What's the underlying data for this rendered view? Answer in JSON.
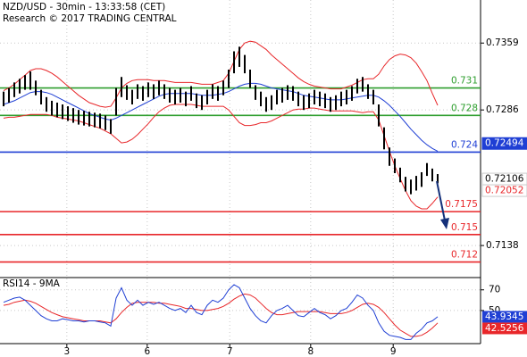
{
  "chart_data": {
    "type": "ohlc",
    "title": "NZD/USD - 30min - 13:33:58 (CET)",
    "subtitle": "Research © 2017 TRADING CENTRAL",
    "xlim": [
      -0.67,
      89
    ],
    "xticks": [
      {
        "value": 11.8,
        "label": "3"
      },
      {
        "value": 26.8,
        "label": "6"
      },
      {
        "value": 42.2,
        "label": "7"
      },
      {
        "value": 57.3,
        "label": "8"
      },
      {
        "value": 72.7,
        "label": "9"
      }
    ],
    "ylim": [
      0.7104,
      0.7406
    ],
    "yticks": [
      0.7359,
      0.7286,
      0.7138
    ],
    "grid": true,
    "bar_color": "#000000",
    "high": [
      0.7306,
      0.731,
      0.7316,
      0.732,
      0.7324,
      0.7328,
      0.7318,
      0.7308,
      0.73,
      0.7296,
      0.7294,
      0.7292,
      0.729,
      0.7288,
      0.7286,
      0.7285,
      0.7284,
      0.7283,
      0.7282,
      0.728,
      0.7276,
      0.731,
      0.7322,
      0.7313,
      0.7308,
      0.7314,
      0.7312,
      0.7316,
      0.7314,
      0.7318,
      0.7314,
      0.731,
      0.7308,
      0.731,
      0.7306,
      0.7312,
      0.7304,
      0.7302,
      0.7308,
      0.7314,
      0.7312,
      0.7318,
      0.733,
      0.735,
      0.7355,
      0.7346,
      0.733,
      0.7313,
      0.7306,
      0.73,
      0.7302,
      0.7308,
      0.731,
      0.7313,
      0.7312,
      0.7306,
      0.7302,
      0.7304,
      0.7308,
      0.7306,
      0.7304,
      0.73,
      0.7302,
      0.7306,
      0.7308,
      0.7312,
      0.732,
      0.7322,
      0.7314,
      0.7308,
      0.7292,
      0.7267,
      0.7245,
      0.7233,
      0.7223,
      0.7213,
      0.721,
      0.7214,
      0.7218,
      0.7228,
      0.7222,
      0.7216
    ],
    "low": [
      0.729,
      0.7294,
      0.73,
      0.7304,
      0.7308,
      0.7308,
      0.7302,
      0.7292,
      0.7284,
      0.728,
      0.7278,
      0.7276,
      0.7274,
      0.7272,
      0.727,
      0.7269,
      0.7268,
      0.7267,
      0.7266,
      0.7264,
      0.726,
      0.728,
      0.73,
      0.7297,
      0.7292,
      0.7298,
      0.7296,
      0.73,
      0.7298,
      0.7302,
      0.7298,
      0.7294,
      0.7292,
      0.7294,
      0.729,
      0.7296,
      0.7288,
      0.7286,
      0.7292,
      0.7298,
      0.7296,
      0.7302,
      0.731,
      0.7326,
      0.7333,
      0.7326,
      0.731,
      0.7297,
      0.729,
      0.7284,
      0.7286,
      0.7292,
      0.7294,
      0.7297,
      0.7296,
      0.729,
      0.7286,
      0.7288,
      0.7292,
      0.729,
      0.7288,
      0.7284,
      0.7286,
      0.729,
      0.7292,
      0.7296,
      0.7304,
      0.7306,
      0.7298,
      0.7292,
      0.7268,
      0.7243,
      0.7225,
      0.7217,
      0.7207,
      0.7197,
      0.7194,
      0.7198,
      0.7202,
      0.7214,
      0.7208,
      0.7206
    ],
    "bands": {
      "color": "#e8272a",
      "upper": [
        0.7307,
        0.731,
        0.7314,
        0.7319,
        0.7324,
        0.7329,
        0.7331,
        0.7331,
        0.7329,
        0.7326,
        0.7322,
        0.7317,
        0.7312,
        0.7307,
        0.7302,
        0.7298,
        0.7294,
        0.7292,
        0.729,
        0.7289,
        0.729,
        0.7299,
        0.731,
        0.7315,
        0.7318,
        0.7319,
        0.7319,
        0.7319,
        0.7318,
        0.7318,
        0.7318,
        0.7317,
        0.7316,
        0.7316,
        0.7316,
        0.7316,
        0.7315,
        0.7314,
        0.7314,
        0.7314,
        0.7316,
        0.7318,
        0.7326,
        0.7339,
        0.7352,
        0.7359,
        0.7361,
        0.736,
        0.7356,
        0.7352,
        0.7346,
        0.7341,
        0.7336,
        0.7331,
        0.7326,
        0.7321,
        0.7317,
        0.7314,
        0.7312,
        0.7311,
        0.731,
        0.7309,
        0.7309,
        0.7309,
        0.7311,
        0.7313,
        0.7316,
        0.7319,
        0.732,
        0.732,
        0.7325,
        0.7334,
        0.7341,
        0.7345,
        0.7347,
        0.7346,
        0.7343,
        0.7337,
        0.7328,
        0.7318,
        0.7304,
        0.7291
      ],
      "lower": [
        0.7277,
        0.7278,
        0.7278,
        0.7279,
        0.728,
        0.7281,
        0.7281,
        0.7281,
        0.7281,
        0.728,
        0.7278,
        0.7277,
        0.7276,
        0.7275,
        0.7274,
        0.7272,
        0.727,
        0.7268,
        0.7266,
        0.7263,
        0.726,
        0.7255,
        0.725,
        0.7251,
        0.7254,
        0.7259,
        0.7265,
        0.7271,
        0.7278,
        0.7284,
        0.7288,
        0.7291,
        0.7292,
        0.7292,
        0.7292,
        0.7292,
        0.7291,
        0.729,
        0.729,
        0.729,
        0.729,
        0.729,
        0.7286,
        0.7279,
        0.7272,
        0.7269,
        0.7269,
        0.727,
        0.7272,
        0.7272,
        0.7274,
        0.7277,
        0.728,
        0.7283,
        0.7286,
        0.7287,
        0.7287,
        0.7288,
        0.7288,
        0.7287,
        0.7286,
        0.7285,
        0.7285,
        0.7285,
        0.7285,
        0.7285,
        0.7284,
        0.7283,
        0.7284,
        0.7284,
        0.7275,
        0.7258,
        0.7241,
        0.7225,
        0.7211,
        0.7198,
        0.7187,
        0.7181,
        0.7178,
        0.7178,
        0.7184,
        0.7191
      ]
    },
    "ma": {
      "color": "#1f3fd4",
      "values": [
        0.7292,
        0.7294,
        0.7296,
        0.7299,
        0.7302,
        0.7305,
        0.7306,
        0.7306,
        0.7305,
        0.7303,
        0.73,
        0.7297,
        0.7294,
        0.7291,
        0.7288,
        0.7285,
        0.7282,
        0.728,
        0.7278,
        0.7276,
        0.7275,
        0.7277,
        0.728,
        0.7283,
        0.7286,
        0.7289,
        0.7292,
        0.7295,
        0.7298,
        0.7301,
        0.7303,
        0.7304,
        0.7304,
        0.7304,
        0.7304,
        0.7304,
        0.7303,
        0.7302,
        0.7302,
        0.7302,
        0.7303,
        0.7304,
        0.7306,
        0.7309,
        0.7312,
        0.7314,
        0.7315,
        0.7315,
        0.7314,
        0.7312,
        0.731,
        0.7309,
        0.7308,
        0.7307,
        0.7306,
        0.7304,
        0.7302,
        0.7301,
        0.73,
        0.7299,
        0.7298,
        0.7297,
        0.7297,
        0.7297,
        0.7298,
        0.7299,
        0.73,
        0.7301,
        0.7302,
        0.7302,
        0.73,
        0.7296,
        0.7291,
        0.7285,
        0.7279,
        0.7272,
        0.7265,
        0.7259,
        0.7253,
        0.7248,
        0.7244,
        0.7241
      ]
    },
    "levels": [
      {
        "value": 0.731,
        "color": "#2e9e2e"
      },
      {
        "value": 0.728,
        "color": "#2e9e2e"
      },
      {
        "value": 0.724,
        "color": "#1f3fd4"
      },
      {
        "value": 0.7175,
        "color": "#e8272a"
      },
      {
        "value": 0.715,
        "color": "#e8272a"
      },
      {
        "value": 0.712,
        "color": "#e8272a"
      }
    ],
    "price_tags": [
      {
        "value": 0.72494,
        "color": "#1f3fd4",
        "filled": true
      },
      {
        "value": 0.72106,
        "color": "#000000",
        "filled": false
      },
      {
        "value": 0.72052,
        "color": "#e8272a",
        "filled": false
      }
    ],
    "rsi": {
      "title": "RSI14 - 9MA",
      "ylim": [
        18,
        81
      ],
      "yticks": [
        70,
        50
      ],
      "color": "#1f3fd4",
      "ma_color": "#e8272a",
      "values": [
        58,
        60,
        62,
        63,
        60,
        55,
        50,
        45,
        42,
        40,
        40,
        42,
        41,
        40,
        40,
        39,
        40,
        40,
        39,
        38,
        35,
        62,
        72,
        60,
        55,
        60,
        55,
        58,
        56,
        58,
        55,
        52,
        50,
        52,
        48,
        55,
        48,
        46,
        55,
        60,
        58,
        62,
        70,
        75,
        72,
        62,
        52,
        45,
        40,
        38,
        45,
        50,
        52,
        55,
        50,
        45,
        44,
        48,
        52,
        48,
        46,
        42,
        45,
        50,
        52,
        58,
        65,
        62,
        55,
        50,
        38,
        30,
        26,
        25,
        24,
        22,
        22,
        28,
        32,
        38,
        40,
        44
      ],
      "ma": [
        55,
        56,
        58,
        59,
        60,
        59,
        57,
        54,
        51,
        48,
        46,
        44,
        43,
        42,
        41,
        40,
        40,
        40,
        40,
        39,
        38,
        42,
        48,
        53,
        57,
        58,
        58,
        58,
        58,
        57,
        57,
        56,
        55,
        54,
        52,
        52,
        51,
        50,
        50,
        51,
        52,
        54,
        57,
        61,
        64,
        66,
        65,
        62,
        57,
        52,
        48,
        46,
        46,
        47,
        48,
        49,
        49,
        49,
        49,
        49,
        48,
        47,
        47,
        47,
        48,
        50,
        53,
        56,
        57,
        56,
        53,
        48,
        42,
        36,
        31,
        28,
        25,
        25,
        26,
        29,
        33,
        38
      ],
      "tags": [
        {
          "value": 43.9345,
          "color": "#1f3fd4"
        },
        {
          "value": 42.5256,
          "color": "#e8272a"
        }
      ]
    }
  }
}
